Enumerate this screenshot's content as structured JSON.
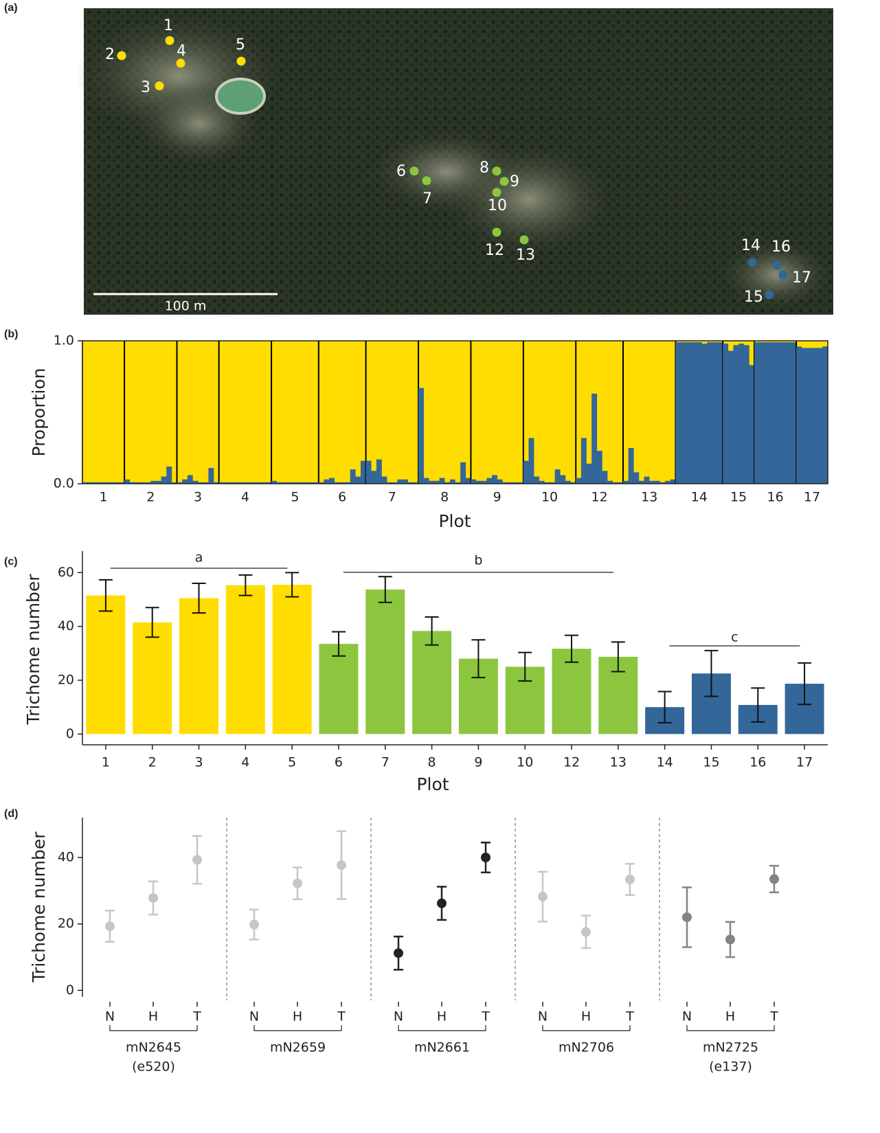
{
  "panel_labels": [
    "(a)",
    "(b)",
    "(c)",
    "(d)"
  ],
  "map": {
    "scale_label": "100 m",
    "points": [
      {
        "label": "1",
        "color": "#ffdd00"
      },
      {
        "label": "2",
        "color": "#ffdd00"
      },
      {
        "label": "3",
        "color": "#ffdd00"
      },
      {
        "label": "4",
        "color": "#ffdd00"
      },
      {
        "label": "5",
        "color": "#ffdd00"
      },
      {
        "label": "6",
        "color": "#8cc63f"
      },
      {
        "label": "7",
        "color": "#8cc63f"
      },
      {
        "label": "8",
        "color": "#8cc63f"
      },
      {
        "label": "9",
        "color": "#8cc63f"
      },
      {
        "label": "10",
        "color": "#8cc63f"
      },
      {
        "label": "12",
        "color": "#8cc63f"
      },
      {
        "label": "13",
        "color": "#8cc63f"
      },
      {
        "label": "14",
        "color": "#336699"
      },
      {
        "label": "16",
        "color": "#336699"
      },
      {
        "label": "17",
        "color": "#336699"
      },
      {
        "label": "15",
        "color": "#336699"
      }
    ]
  },
  "chart_data": [
    {
      "type": "structure",
      "xlabel": "Plot",
      "ylabel": "Proportion",
      "color": "#336699",
      "background": "#ffdd00",
      "ylim": [
        0,
        1
      ],
      "yticks": [
        {
          "value": 0,
          "label": "0.0"
        },
        {
          "value": 1,
          "label": "1.0"
        }
      ],
      "groups": [
        {
          "label": "1",
          "values": [
            0.01,
            0.01,
            0.01,
            0.01,
            0.01,
            0.01,
            0.01,
            0.01
          ]
        },
        {
          "label": "2",
          "values": [
            0.03,
            0.01,
            0.01,
            0.01,
            0.01,
            0.02,
            0.02,
            0.05,
            0.12,
            0.01
          ]
        },
        {
          "label": "3",
          "values": [
            0.01,
            0.03,
            0.06,
            0.02,
            0.01,
            0.01,
            0.11,
            0.01
          ]
        },
        {
          "label": "4",
          "values": [
            0.01,
            0.01,
            0.01,
            0.01,
            0.01,
            0.01,
            0.01,
            0.01,
            0.01,
            0.01
          ]
        },
        {
          "label": "5",
          "values": [
            0.02,
            0.01,
            0.01,
            0.01,
            0.01,
            0.01,
            0.01,
            0.01,
            0.01
          ]
        },
        {
          "label": "6",
          "values": [
            0.01,
            0.03,
            0.04,
            0.01,
            0.01,
            0.01,
            0.1,
            0.05,
            0.16
          ]
        },
        {
          "label": "7",
          "values": [
            0.16,
            0.09,
            0.17,
            0.05,
            0.01,
            0.01,
            0.03,
            0.03,
            0.01,
            0.01
          ]
        },
        {
          "label": "8",
          "values": [
            0.67,
            0.04,
            0.02,
            0.02,
            0.04,
            0.01,
            0.03,
            0.01,
            0.15,
            0.04
          ]
        },
        {
          "label": "9",
          "values": [
            0.03,
            0.02,
            0.02,
            0.04,
            0.06,
            0.03,
            0.01,
            0.01,
            0.01,
            0.01
          ]
        },
        {
          "label": "10",
          "values": [
            0.16,
            0.32,
            0.05,
            0.02,
            0.01,
            0.01,
            0.1,
            0.06,
            0.02,
            0.01
          ]
        },
        {
          "label": "12",
          "values": [
            0.04,
            0.32,
            0.14,
            0.63,
            0.23,
            0.09,
            0.02,
            0.01,
            0.01
          ]
        },
        {
          "label": "13",
          "values": [
            0.02,
            0.25,
            0.08,
            0.02,
            0.05,
            0.02,
            0.02,
            0.01,
            0.02,
            0.03
          ]
        },
        {
          "label": "14",
          "values": [
            0.99,
            0.99,
            0.99,
            0.99,
            0.99,
            0.98,
            0.99,
            0.99,
            0.99
          ]
        },
        {
          "label": "15",
          "values": [
            0.98,
            0.93,
            0.97,
            0.98,
            0.97,
            0.83
          ]
        },
        {
          "label": "16",
          "values": [
            0.99,
            0.99,
            0.99,
            0.99,
            0.99,
            0.99,
            0.99,
            0.99
          ]
        },
        {
          "label": "17",
          "values": [
            0.96,
            0.95,
            0.95,
            0.95,
            0.95,
            0.96
          ]
        }
      ]
    },
    {
      "type": "bar",
      "xlabel": "Plot",
      "ylabel": "Trichome number",
      "categories": [
        "1",
        "2",
        "3",
        "4",
        "5",
        "6",
        "7",
        "8",
        "9",
        "10",
        "12",
        "13",
        "14",
        "15",
        "16",
        "17"
      ],
      "values": [
        51.5,
        41.5,
        50.5,
        55.3,
        55.5,
        33.5,
        53.7,
        38.3,
        28,
        25,
        31.7,
        28.7,
        10,
        22.5,
        10.8,
        18.7
      ],
      "errors": [
        5.8,
        5.5,
        5.5,
        3.8,
        4.5,
        4.5,
        4.8,
        5.2,
        7,
        5.3,
        5,
        5.5,
        5.8,
        8.5,
        6.3,
        7.7
      ],
      "colors": [
        "#ffdd00",
        "#ffdd00",
        "#ffdd00",
        "#ffdd00",
        "#ffdd00",
        "#8cc63f",
        "#8cc63f",
        "#8cc63f",
        "#8cc63f",
        "#8cc63f",
        "#8cc63f",
        "#8cc63f",
        "#336699",
        "#336699",
        "#336699",
        "#336699"
      ],
      "group_labels": [
        "a",
        "b",
        "c"
      ],
      "ylim": [
        -4,
        68
      ],
      "yticks": [
        0,
        20,
        40,
        60
      ]
    },
    {
      "type": "point",
      "ylabel": "Trichome number",
      "ylim": [
        -2,
        52
      ],
      "yticks": [
        0,
        20,
        40
      ],
      "groups": [
        {
          "name": [
            "mN2645",
            "(e520)"
          ],
          "color": "#c9c6c1",
          "categories": [
            "N",
            "H",
            "T"
          ],
          "values": [
            19.3,
            27.8,
            39.3
          ],
          "errors": [
            4.7,
            5,
            7.2
          ]
        },
        {
          "name": [
            "mN2659"
          ],
          "color": "#c9c6c1",
          "categories": [
            "N",
            "H",
            "T"
          ],
          "values": [
            19.8,
            32.2,
            37.7
          ],
          "errors": [
            4.5,
            4.8,
            10.2
          ]
        },
        {
          "name": [
            "mN2661"
          ],
          "color": "#222222",
          "categories": [
            "N",
            "H",
            "T"
          ],
          "values": [
            11.2,
            26.2,
            40
          ],
          "errors": [
            5,
            5,
            4.5
          ]
        },
        {
          "name": [
            "mN2706"
          ],
          "color": "#c9c6c1",
          "categories": [
            "N",
            "H",
            "T"
          ],
          "values": [
            28.2,
            17.6,
            33.4
          ],
          "errors": [
            7.5,
            4.9,
            4.7
          ]
        },
        {
          "name": [
            "mN2725",
            "(e137)"
          ],
          "color": "#858280",
          "categories": [
            "N",
            "H",
            "T"
          ],
          "values": [
            22,
            15.3,
            33.5
          ],
          "errors": [
            9,
            5.3,
            4
          ]
        }
      ]
    }
  ]
}
